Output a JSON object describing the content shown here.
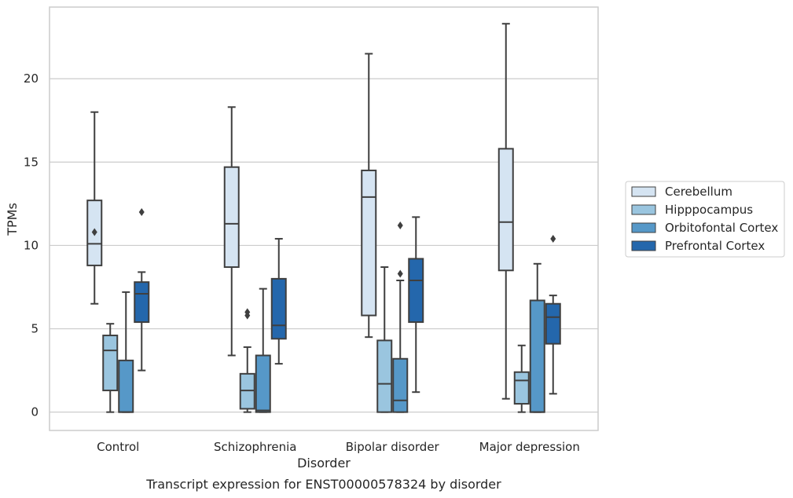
{
  "chart_data": {
    "type": "box",
    "title": "",
    "caption": "Transcript expression for ENST00000578324 by disorder",
    "xlabel": "Disorder",
    "ylabel": "TPMs",
    "ylim": [
      -1.1,
      24.3
    ],
    "yticks": [
      0,
      5,
      10,
      15,
      20
    ],
    "grid": "horizontal",
    "legend_position": "right",
    "categories": [
      "Control",
      "Schizophrenia",
      "Bipolar disorder",
      "Major depression"
    ],
    "series": [
      {
        "name": "Cerebellum",
        "color": "#d5e4f2",
        "boxes": [
          {
            "whisker_low": 6.5,
            "q1": 8.8,
            "median": 10.1,
            "q3": 12.7,
            "whisker_high": 18.0,
            "outliers": [
              10.8
            ]
          },
          {
            "whisker_low": 3.4,
            "q1": 8.7,
            "median": 11.3,
            "q3": 14.7,
            "whisker_high": 18.3,
            "outliers": []
          },
          {
            "whisker_low": 4.5,
            "q1": 5.8,
            "median": 12.9,
            "q3": 14.5,
            "whisker_high": 21.5,
            "outliers": []
          },
          {
            "whisker_low": 0.8,
            "q1": 8.5,
            "median": 11.4,
            "q3": 15.8,
            "whisker_high": 23.3,
            "outliers": []
          }
        ]
      },
      {
        "name": "Hipppocampus",
        "color": "#9ac5df",
        "boxes": [
          {
            "whisker_low": 0.0,
            "q1": 1.3,
            "median": 3.7,
            "q3": 4.6,
            "whisker_high": 5.3,
            "outliers": []
          },
          {
            "whisker_low": 0.0,
            "q1": 0.2,
            "median": 1.3,
            "q3": 2.3,
            "whisker_high": 3.9,
            "outliers": [
              5.8,
              6.0
            ]
          },
          {
            "whisker_low": 0.0,
            "q1": 0.0,
            "median": 1.7,
            "q3": 4.3,
            "whisker_high": 8.7,
            "outliers": []
          },
          {
            "whisker_low": 0.0,
            "q1": 0.5,
            "median": 1.9,
            "q3": 2.4,
            "whisker_high": 4.0,
            "outliers": []
          }
        ]
      },
      {
        "name": "Orbitofontal Cortex",
        "color": "#5698c8",
        "boxes": [
          {
            "whisker_low": 0.0,
            "q1": 0.0,
            "median": 0.0,
            "q3": 3.1,
            "whisker_high": 7.2,
            "outliers": []
          },
          {
            "whisker_low": 0.0,
            "q1": 0.0,
            "median": 0.1,
            "q3": 3.4,
            "whisker_high": 7.4,
            "outliers": []
          },
          {
            "whisker_low": 0.0,
            "q1": 0.0,
            "median": 0.7,
            "q3": 3.2,
            "whisker_high": 7.9,
            "outliers": [
              8.3,
              11.2
            ]
          },
          {
            "whisker_low": 0.0,
            "q1": 0.0,
            "median": 0.0,
            "q3": 6.7,
            "whisker_high": 8.9,
            "outliers": []
          }
        ]
      },
      {
        "name": "Prefrontal Cortex",
        "color": "#2467ac",
        "boxes": [
          {
            "whisker_low": 2.5,
            "q1": 5.4,
            "median": 7.1,
            "q3": 7.8,
            "whisker_high": 8.4,
            "outliers": [
              12.0
            ]
          },
          {
            "whisker_low": 2.9,
            "q1": 4.4,
            "median": 5.2,
            "q3": 8.0,
            "whisker_high": 10.4,
            "outliers": []
          },
          {
            "whisker_low": 1.2,
            "q1": 5.4,
            "median": 7.9,
            "q3": 9.2,
            "whisker_high": 11.7,
            "outliers": []
          },
          {
            "whisker_low": 1.1,
            "q1": 4.1,
            "median": 5.7,
            "q3": 6.5,
            "whisker_high": 7.0,
            "outliers": [
              10.4
            ]
          }
        ]
      }
    ]
  }
}
